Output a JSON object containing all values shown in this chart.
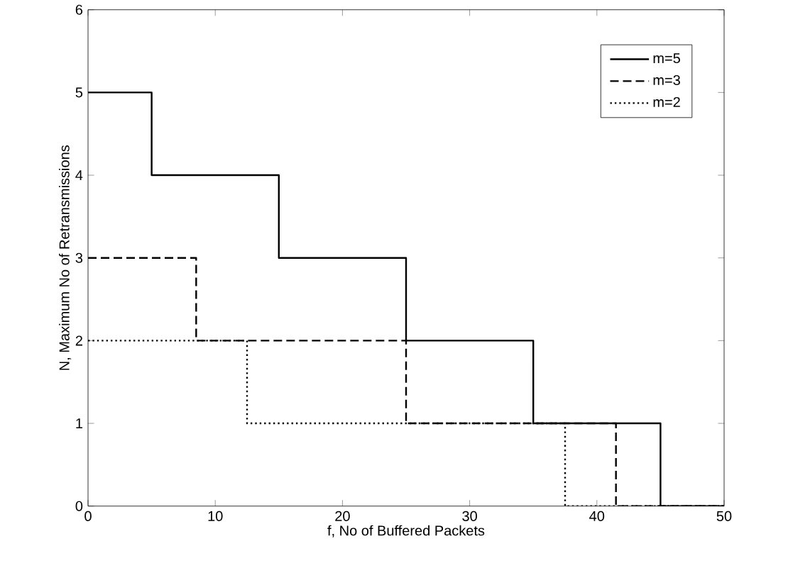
{
  "chart_data": {
    "type": "step",
    "xlabel": "f, No of Buffered Packets",
    "ylabel": "N, Maximum No of Retransmissions",
    "xlim": [
      0,
      50
    ],
    "ylim": [
      0,
      6
    ],
    "xticks": [
      0,
      10,
      20,
      30,
      40,
      50
    ],
    "yticks": [
      0,
      1,
      2,
      3,
      4,
      5,
      6
    ],
    "legend": "top right",
    "grid": false,
    "series": [
      {
        "name": "m=5",
        "color": "#000000",
        "line_style": "solid",
        "x": [
          0,
          5,
          15,
          25,
          35,
          45,
          50
        ],
        "values": [
          5,
          4,
          3,
          2,
          1,
          0,
          0
        ]
      },
      {
        "name": "m=3",
        "color": "#000000",
        "line_style": "dashed",
        "x": [
          0,
          8.5,
          25,
          41.5,
          50
        ],
        "values": [
          3,
          2,
          1,
          0,
          0
        ]
      },
      {
        "name": "m=2",
        "color": "#000000",
        "line_style": "dotted",
        "x": [
          0,
          12.5,
          37.5,
          50
        ],
        "values": [
          2,
          1,
          0,
          0
        ]
      }
    ]
  }
}
